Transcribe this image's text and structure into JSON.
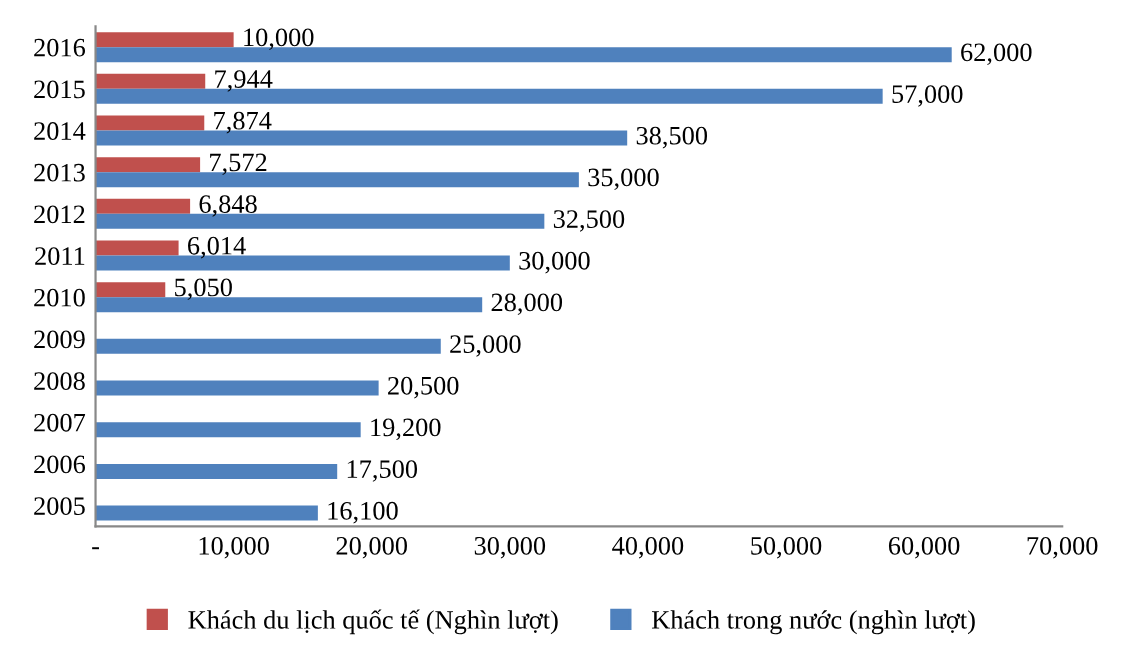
{
  "chart_data": {
    "type": "bar",
    "orientation": "horizontal",
    "categories": [
      "2016",
      "2015",
      "2014",
      "2013",
      "2012",
      "2011",
      "2010",
      "2009",
      "2008",
      "2007",
      "2006",
      "2005"
    ],
    "series": [
      {
        "name": "Khách du lịch quốc tế (Nghìn lượt)",
        "color": "#c0504d",
        "values": [
          10000,
          7944,
          7874,
          7572,
          6848,
          6014,
          5050,
          null,
          null,
          null,
          null,
          null
        ],
        "value_labels": [
          "10,000",
          "7,944",
          "7,874",
          "7,572",
          "6,848",
          "6,014",
          "5,050",
          null,
          null,
          null,
          null,
          null
        ]
      },
      {
        "name": "Khách trong nước (nghìn lượt)",
        "color": "#4f81bd",
        "values": [
          62000,
          57000,
          38500,
          35000,
          32500,
          30000,
          28000,
          25000,
          20500,
          19200,
          17500,
          16100
        ],
        "value_labels": [
          "62,000",
          "57,000",
          "38,500",
          "35,000",
          "32,500",
          "30,000",
          "28,000",
          "25,000",
          "20,500",
          "19,200",
          "17,500",
          "16,100"
        ]
      }
    ],
    "xlim": [
      0,
      70000
    ],
    "xticks": [
      {
        "value": 0,
        "label": "-"
      },
      {
        "value": 10000,
        "label": "10,000"
      },
      {
        "value": 20000,
        "label": "20,000"
      },
      {
        "value": 30000,
        "label": "30,000"
      },
      {
        "value": 40000,
        "label": "40,000"
      },
      {
        "value": 50000,
        "label": "50,000"
      },
      {
        "value": 60000,
        "label": "60,000"
      },
      {
        "value": 70000,
        "label": "70,000"
      }
    ],
    "grid": false,
    "legend": "bottom"
  }
}
